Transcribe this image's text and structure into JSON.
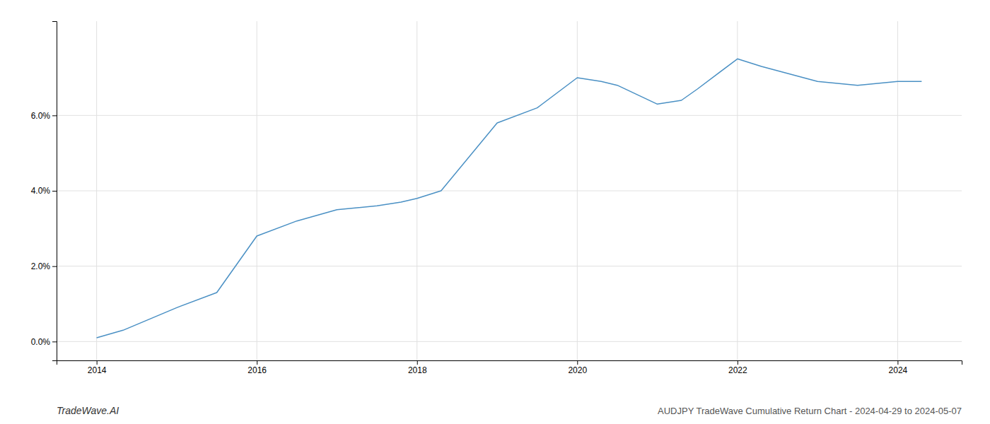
{
  "chart_data": {
    "type": "line",
    "title": "AUDJPY TradeWave Cumulative Return Chart - 2024-04-29 to 2024-05-07",
    "annotations": [
      "TradeWave.AI"
    ],
    "x": [
      2014,
      2014.33,
      2015.0,
      2015.5,
      2016.0,
      2016.5,
      2017.0,
      2017.5,
      2017.8,
      2018.0,
      2018.3,
      2019.0,
      2019.5,
      2020.0,
      2020.3,
      2020.5,
      2021.0,
      2021.3,
      2021.5,
      2022.0,
      2022.3,
      2023.0,
      2023.5,
      2024.0,
      2024.3
    ],
    "values": [
      0.001,
      0.003,
      0.009,
      0.013,
      0.028,
      0.032,
      0.035,
      0.036,
      0.037,
      0.038,
      0.04,
      0.058,
      0.062,
      0.07,
      0.069,
      0.068,
      0.063,
      0.064,
      0.067,
      0.075,
      0.073,
      0.069,
      0.068,
      0.069,
      0.069
    ],
    "color": "#4a90c4",
    "xlim": [
      2013.5,
      2024.8
    ],
    "ylim": [
      -0.005,
      0.085
    ],
    "xticks": [
      2014,
      2016,
      2018,
      2020,
      2022,
      2024
    ],
    "yticks": [
      {
        "value": 0.0,
        "label": "0.0%"
      },
      {
        "value": 0.02,
        "label": "2.0%"
      },
      {
        "value": 0.04,
        "label": "4.0%"
      },
      {
        "value": 0.06,
        "label": "6.0%"
      }
    ],
    "grid": true
  }
}
